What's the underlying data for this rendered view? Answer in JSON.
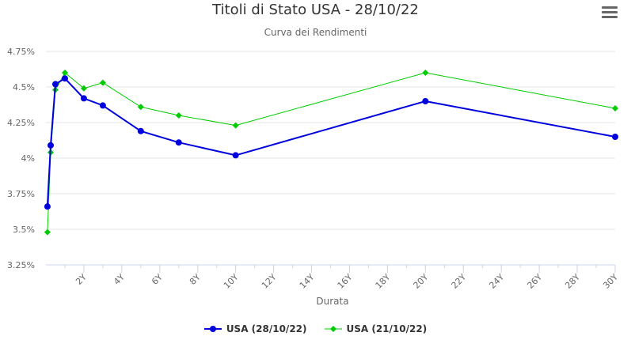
{
  "header": {
    "title": "Titoli di Stato USA - 28/10/22",
    "subtitle": "Curva dei Rendimenti",
    "menu_icon": "hamburger-menu-icon"
  },
  "chart_data": {
    "type": "line",
    "xlabel": "Durata",
    "ylabel": "",
    "xlim": [
      0,
      30
    ],
    "ylim": [
      3.25,
      4.75
    ],
    "x_ticks": [
      2,
      4,
      6,
      8,
      10,
      12,
      14,
      16,
      18,
      20,
      22,
      24,
      26,
      28,
      30
    ],
    "x_tick_labels": [
      "2Y",
      "4Y",
      "6Y",
      "8Y",
      "10Y",
      "12Y",
      "14Y",
      "16Y",
      "18Y",
      "20Y",
      "22Y",
      "24Y",
      "26Y",
      "28Y",
      "30Y"
    ],
    "y_ticks": [
      3.25,
      3.5,
      3.75,
      4,
      4.25,
      4.5,
      4.75
    ],
    "y_tick_labels": [
      "3.25%",
      "3.5%",
      "3.75%",
      "4%",
      "4.25%",
      "4.5%",
      "4.75%"
    ],
    "grid": true,
    "legend_position": "bottom-center",
    "series": [
      {
        "name": "USA (28/10/22)",
        "color": "#0000dd",
        "marker": "circle",
        "points": [
          {
            "x": 0.08,
            "y": 3.66
          },
          {
            "x": 0.25,
            "y": 4.09
          },
          {
            "x": 0.5,
            "y": 4.52
          },
          {
            "x": 1,
            "y": 4.56
          },
          {
            "x": 2,
            "y": 4.42
          },
          {
            "x": 3,
            "y": 4.37
          },
          {
            "x": 5,
            "y": 4.19
          },
          {
            "x": 7,
            "y": 4.11
          },
          {
            "x": 10,
            "y": 4.02
          },
          {
            "x": 20,
            "y": 4.4
          },
          {
            "x": 30,
            "y": 4.15
          }
        ]
      },
      {
        "name": "USA (21/10/22)",
        "color": "#00cc00",
        "marker": "diamond",
        "points": [
          {
            "x": 0.08,
            "y": 3.48
          },
          {
            "x": 0.25,
            "y": 4.04
          },
          {
            "x": 0.5,
            "y": 4.48
          },
          {
            "x": 1,
            "y": 4.6
          },
          {
            "x": 2,
            "y": 4.49
          },
          {
            "x": 3,
            "y": 4.53
          },
          {
            "x": 5,
            "y": 4.36
          },
          {
            "x": 7,
            "y": 4.3
          },
          {
            "x": 10,
            "y": 4.23
          },
          {
            "x": 20,
            "y": 4.6
          },
          {
            "x": 30,
            "y": 4.35
          }
        ]
      }
    ]
  }
}
